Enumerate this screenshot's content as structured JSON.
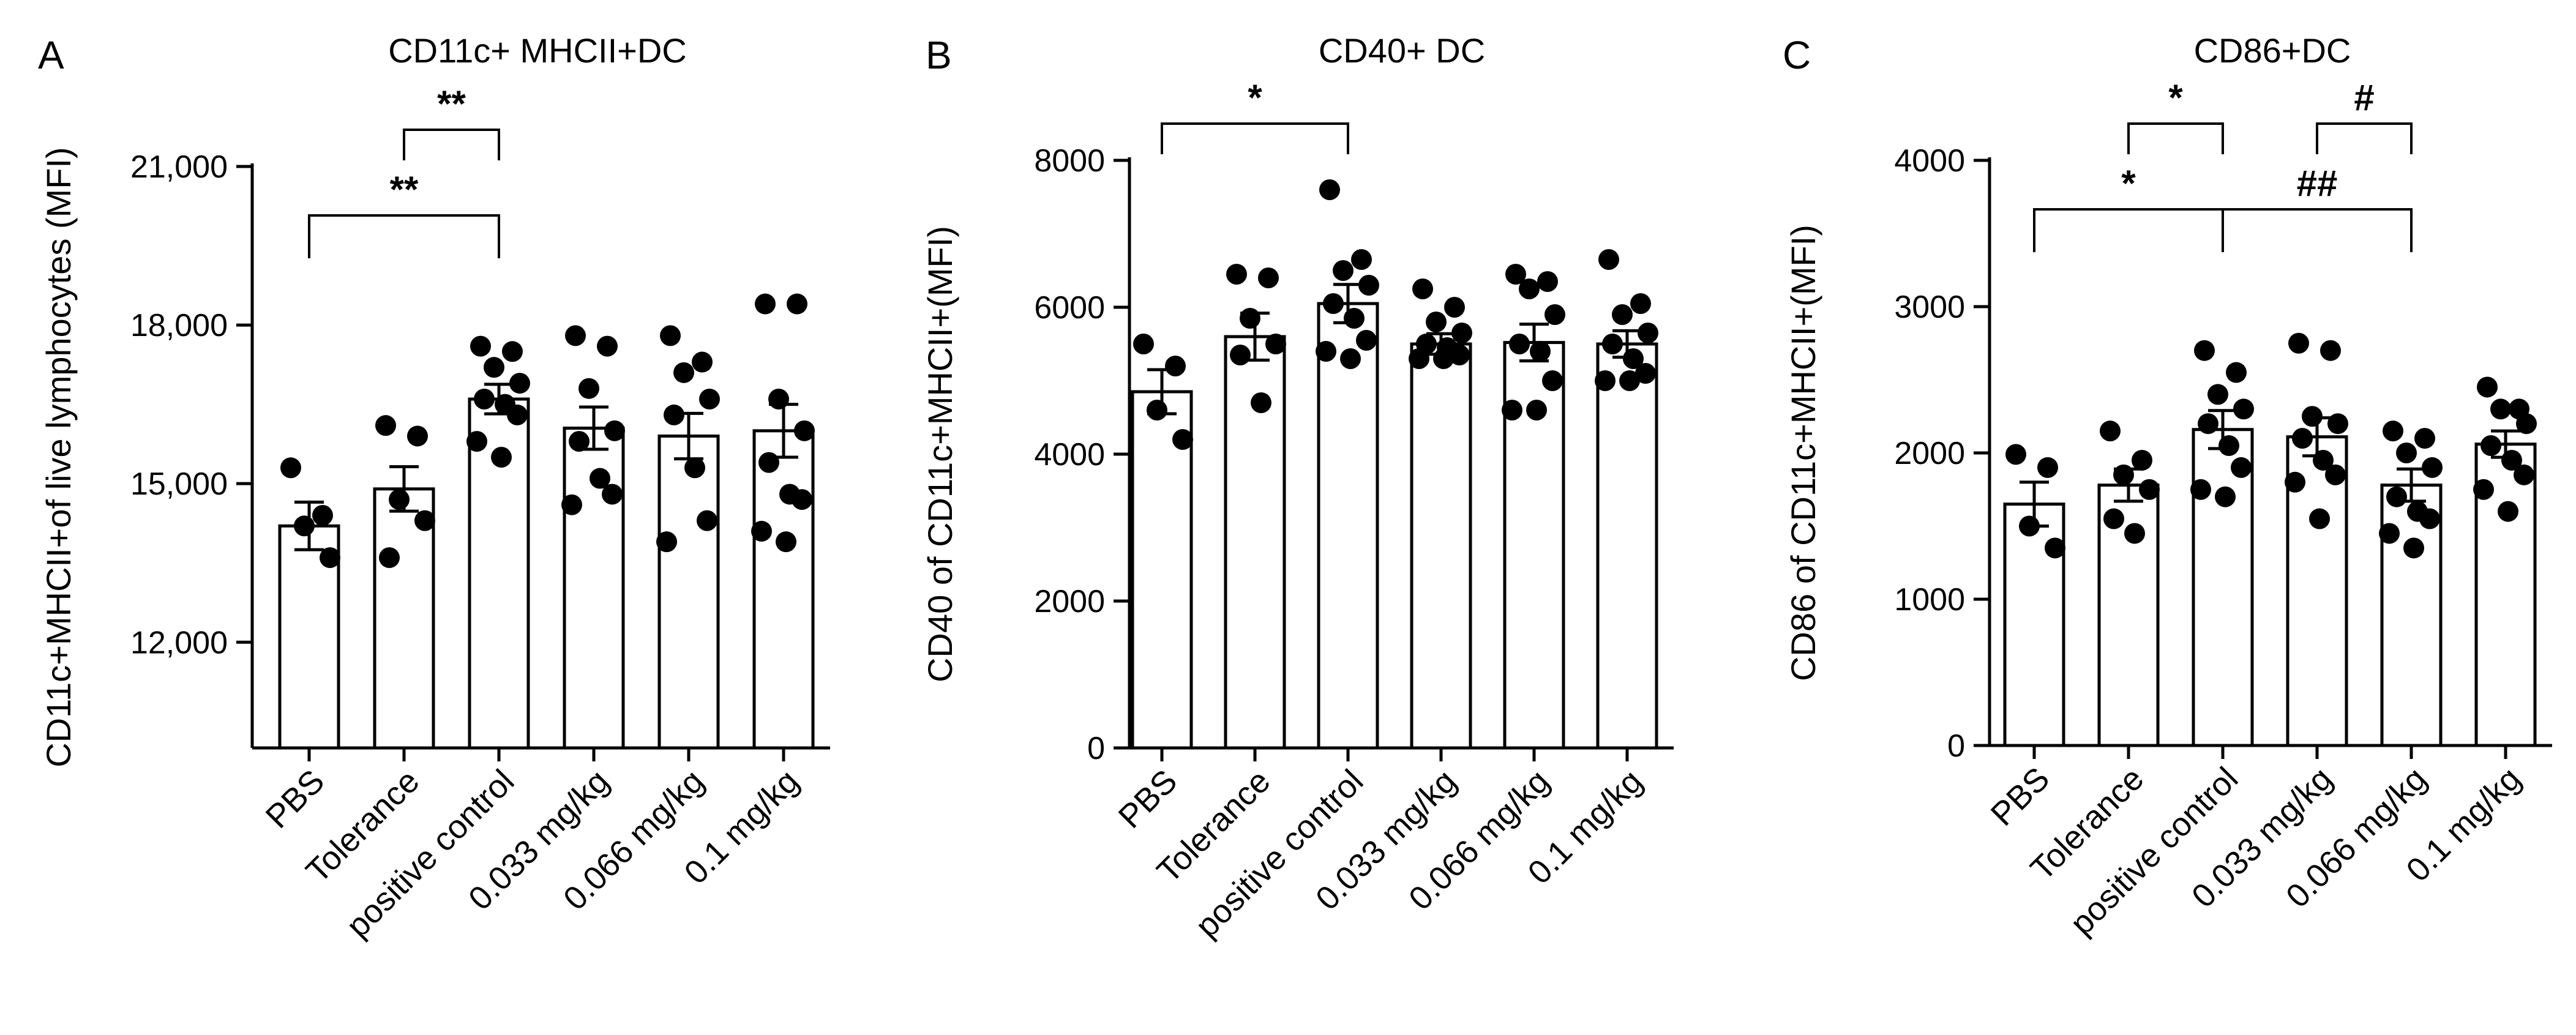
{
  "chart_data": [
    {
      "panel": "A",
      "type": "bar",
      "title": "CD11c+ MHCII+DC",
      "ylabel": "CD11c+MHCII+of live lymphocytes (MFI)",
      "xlabel": "",
      "ylim": [
        10000,
        21000
      ],
      "yticks": [
        12000,
        15000,
        18000,
        21000
      ],
      "ytick_labels": [
        "12,000",
        "15,000",
        "18,000",
        "21,000"
      ],
      "categories": [
        "PBS",
        "Tolerance",
        "positive control",
        "0.033 mg/kg",
        "0.066 mg/kg",
        "0.1 mg/kg"
      ],
      "values": [
        14200,
        14900,
        16600,
        16050,
        15900,
        16000
      ],
      "sem": [
        450,
        420,
        280,
        400,
        430,
        500
      ],
      "points": [
        [
          15300,
          14400,
          14200,
          13600
        ],
        [
          16100,
          15900,
          14700,
          14300,
          13600
        ],
        [
          17600,
          17500,
          17200,
          16900,
          16600,
          16500,
          16300,
          15800,
          15500
        ],
        [
          17800,
          17600,
          16800,
          16000,
          15800,
          15100,
          14800,
          14600
        ],
        [
          17800,
          17300,
          17100,
          16600,
          16300,
          15300,
          14300,
          13900
        ],
        [
          18400,
          18400,
          16600,
          16000,
          15400,
          14800,
          14700,
          14100,
          13900
        ]
      ],
      "comparisons": [
        {
          "from": 0,
          "to": 2,
          "label": "**",
          "level": 1
        },
        {
          "from": 1,
          "to": 2,
          "label": "**",
          "level": 0
        }
      ]
    },
    {
      "panel": "B",
      "type": "bar",
      "title": "CD40+ DC",
      "ylabel": "CD40 of CD11c+MHCII+(MFI)",
      "xlabel": "",
      "ylim": [
        0,
        8000
      ],
      "yticks": [
        0,
        2000,
        4000,
        6000,
        8000
      ],
      "ytick_labels": [
        "0",
        "2000",
        "4000",
        "6000",
        "8000"
      ],
      "categories": [
        "PBS",
        "Tolerance",
        "positive control",
        "0.033 mg/kg",
        "0.066 mg/kg",
        "0.1 mg/kg"
      ],
      "values": [
        4850,
        5600,
        6050,
        5500,
        5520,
        5500
      ],
      "sem": [
        300,
        320,
        260,
        140,
        250,
        180
      ],
      "points": [
        [
          5500,
          5200,
          4600,
          4200
        ],
        [
          6450,
          6400,
          5850,
          5500,
          5350,
          4700
        ],
        [
          7600,
          6650,
          6500,
          6300,
          6050,
          5850,
          5550,
          5400,
          5300
        ],
        [
          6250,
          6000,
          5800,
          5650,
          5500,
          5450,
          5350,
          5300,
          5300
        ],
        [
          6450,
          6350,
          6250,
          5900,
          5500,
          5400,
          5000,
          4600,
          4600
        ],
        [
          6650,
          6050,
          5900,
          5650,
          5500,
          5300,
          5100,
          5000,
          5000
        ]
      ],
      "comparisons": [
        {
          "from": 0,
          "to": 2,
          "label": "*",
          "level": 0
        }
      ]
    },
    {
      "panel": "C",
      "type": "bar",
      "title": "CD86+DC",
      "ylabel": "CD86 of CD11c+MHCII+(MFI)",
      "xlabel": "",
      "ylim": [
        0,
        4000
      ],
      "yticks": [
        0,
        1000,
        2000,
        3000,
        4000
      ],
      "ytick_labels": [
        "0",
        "1000",
        "2000",
        "3000",
        "4000"
      ],
      "categories": [
        "PBS",
        "Tolerance",
        "positive control",
        "0.033 mg/kg",
        "0.066 mg/kg",
        "0.1 mg/kg"
      ],
      "values": [
        1650,
        1780,
        2160,
        2110,
        1780,
        2060
      ],
      "sem": [
        150,
        110,
        130,
        130,
        110,
        90
      ],
      "points": [
        [
          1990,
          1900,
          1500,
          1350
        ],
        [
          2150,
          1950,
          1850,
          1750,
          1550,
          1450
        ],
        [
          2700,
          2550,
          2400,
          2300,
          2200,
          2050,
          1900,
          1750,
          1700
        ],
        [
          2750,
          2700,
          2250,
          2200,
          2100,
          1950,
          1850,
          1800,
          1550
        ],
        [
          2150,
          2100,
          2000,
          1900,
          1700,
          1600,
          1550,
          1450,
          1350
        ],
        [
          2450,
          2300,
          2300,
          2200,
          2050,
          1950,
          1850,
          1750,
          1600
        ]
      ],
      "comparisons": [
        {
          "from": 0,
          "to": 2,
          "label": "*",
          "level": 1
        },
        {
          "from": 1,
          "to": 2,
          "label": "*",
          "level": 0
        },
        {
          "from": 2,
          "to": 4,
          "label": "##",
          "level": 1
        },
        {
          "from": 3,
          "to": 4,
          "label": "#",
          "level": 0
        }
      ]
    }
  ]
}
